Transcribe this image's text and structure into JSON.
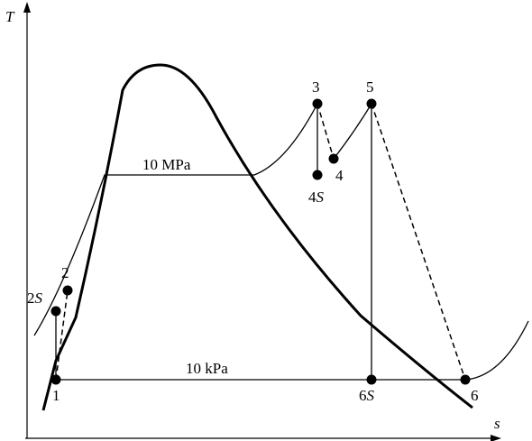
{
  "axes": {
    "y_label": "T",
    "x_label": "s"
  },
  "pressure_lines": {
    "high": "10 MPa",
    "low": "10 kPa"
  },
  "states": [
    {
      "id": "1",
      "label": "1"
    },
    {
      "id": "2",
      "label": "2"
    },
    {
      "id": "2s",
      "label_num": "2",
      "label_sub": "S"
    },
    {
      "id": "3",
      "label": "3"
    },
    {
      "id": "4",
      "label": "4"
    },
    {
      "id": "4s",
      "label_num": "4",
      "label_sub": "S"
    },
    {
      "id": "5",
      "label": "5"
    },
    {
      "id": "6",
      "label": "6"
    },
    {
      "id": "6s",
      "label_num": "6",
      "label_sub": "S"
    }
  ]
}
